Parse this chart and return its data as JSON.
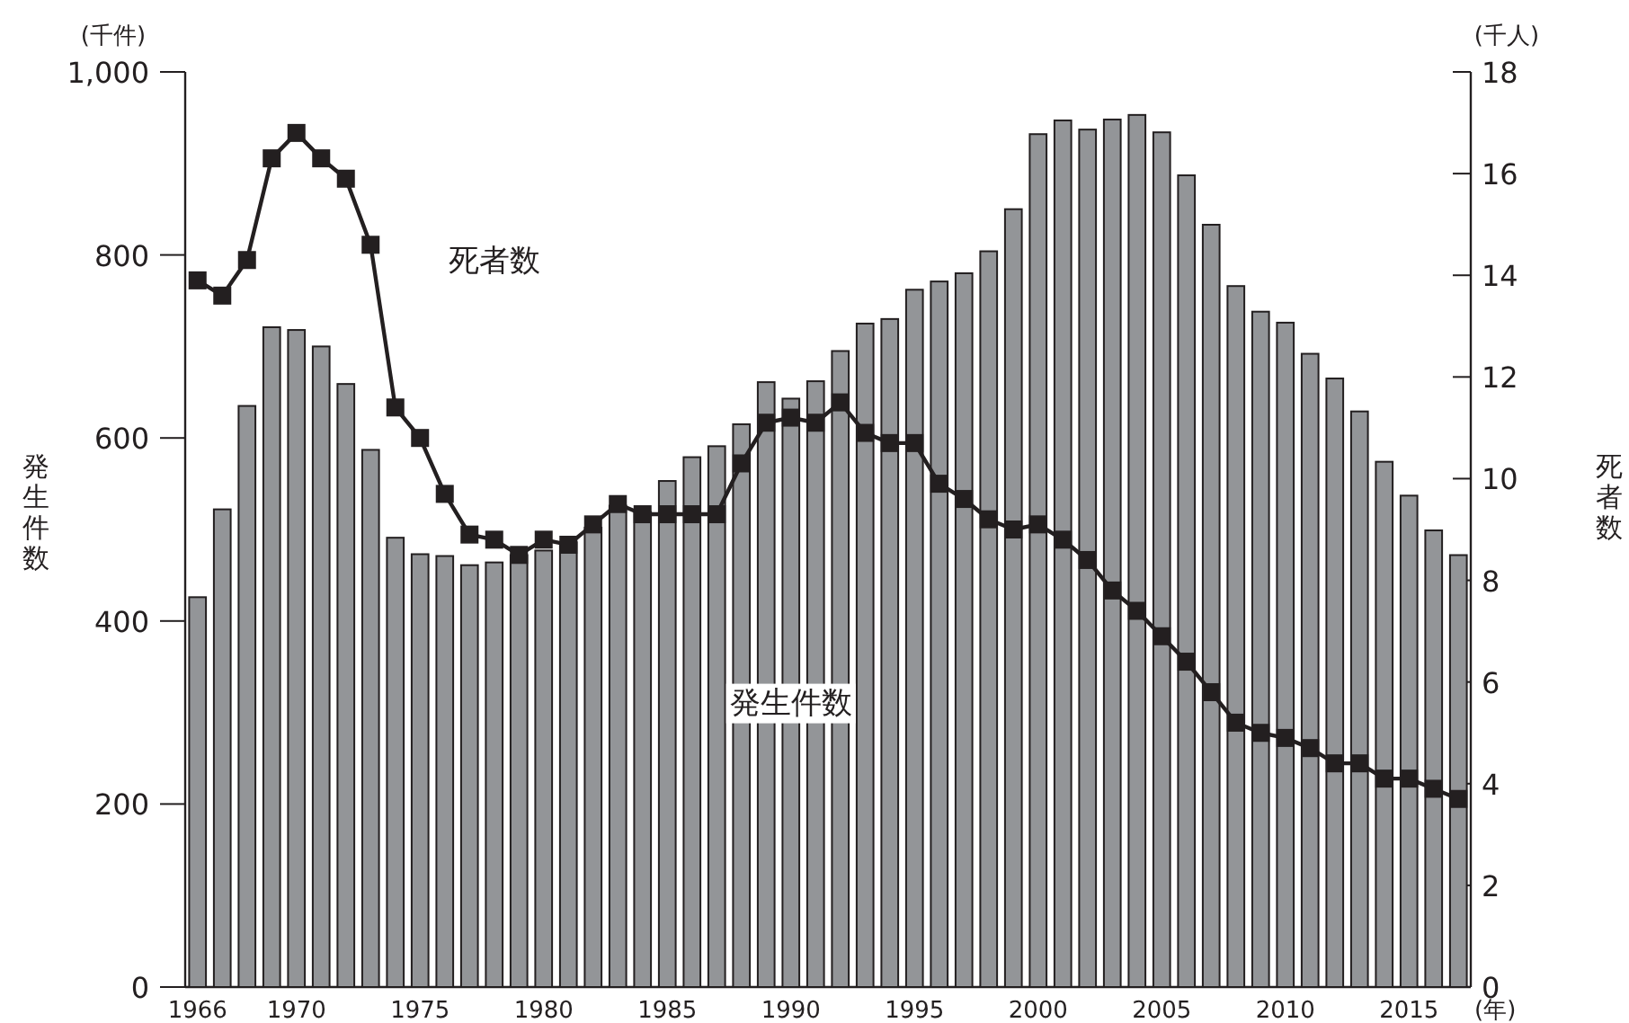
{
  "chart_data": {
    "type": "bar",
    "categories": [
      "1966",
      null,
      null,
      null,
      "1970",
      null,
      null,
      null,
      null,
      "1975",
      null,
      null,
      null,
      null,
      "1980",
      null,
      null,
      null,
      null,
      "1985",
      null,
      null,
      null,
      null,
      "1990",
      null,
      null,
      null,
      null,
      "1995",
      null,
      null,
      null,
      null,
      "2000",
      null,
      null,
      null,
      null,
      "2005",
      null,
      null,
      null,
      null,
      "2010",
      null,
      null,
      null,
      null,
      "2015",
      null,
      null
    ],
    "xlabel": "(年)",
    "ylabel": "発生件数",
    "y2label": "死者数",
    "annotations": [
      "(千件)",
      "(千人)"
    ],
    "ylim": [
      0,
      1000
    ],
    "yticks": [
      0,
      200,
      400,
      600,
      800,
      {
        "value": 1000,
        "label": "1,000"
      }
    ],
    "y2lim": [
      0,
      18
    ],
    "y2ticks": [
      0,
      2,
      4,
      6,
      8,
      10,
      12,
      14,
      16,
      18
    ],
    "marker": "square",
    "series": [
      {
        "name": "発生件数",
        "color": "#939598",
        "values": [
          426,
          522,
          635,
          721,
          718,
          700,
          659,
          587,
          491,
          473,
          471,
          461,
          464,
          472,
          477,
          486,
          502,
          526,
          519,
          553,
          579,
          591,
          615,
          661,
          643,
          662,
          695,
          725,
          730,
          762,
          771,
          780,
          804,
          850,
          932,
          947,
          937,
          948,
          953,
          934,
          887,
          833,
          766,
          738,
          726,
          692,
          665,
          629,
          574,
          537,
          499,
          472
        ]
      },
      {
        "name": "死者数",
        "type": "line",
        "axis": "y2",
        "color": "#231f20",
        "values": [
          13.9,
          13.6,
          14.3,
          16.3,
          16.8,
          16.3,
          15.9,
          14.6,
          11.4,
          10.8,
          9.7,
          8.9,
          8.8,
          8.5,
          8.8,
          8.7,
          9.1,
          9.5,
          9.3,
          9.3,
          9.3,
          9.3,
          10.3,
          11.1,
          11.2,
          11.1,
          11.5,
          10.9,
          10.7,
          10.7,
          9.9,
          9.6,
          9.2,
          9.0,
          9.1,
          8.8,
          8.4,
          7.8,
          7.4,
          6.9,
          6.4,
          5.8,
          5.2,
          5.0,
          4.9,
          4.7,
          4.4,
          4.4,
          4.1,
          4.1,
          3.9,
          3.7
        ]
      }
    ]
  }
}
